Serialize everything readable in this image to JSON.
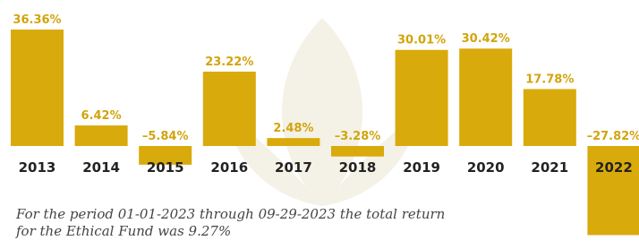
{
  "chart_data": {
    "type": "bar",
    "categories": [
      "2013",
      "2014",
      "2015",
      "2016",
      "2017",
      "2018",
      "2019",
      "2020",
      "2021",
      "2022"
    ],
    "values": [
      36.36,
      6.42,
      -5.84,
      23.22,
      2.48,
      -3.28,
      30.01,
      30.42,
      17.78,
      -27.82
    ],
    "value_labels": [
      "36.36%",
      "6.42%",
      "–5.84%",
      "23.22%",
      "2.48%",
      "–3.28%",
      "30.01%",
      "30.42%",
      "17.78%",
      "–27.82%"
    ],
    "color": "#d9aa0b",
    "footnote": [
      "For the period 01-01-2023 through 09-29-2023 the total return",
      "for the Ethical Fund was 9.27%"
    ]
  }
}
